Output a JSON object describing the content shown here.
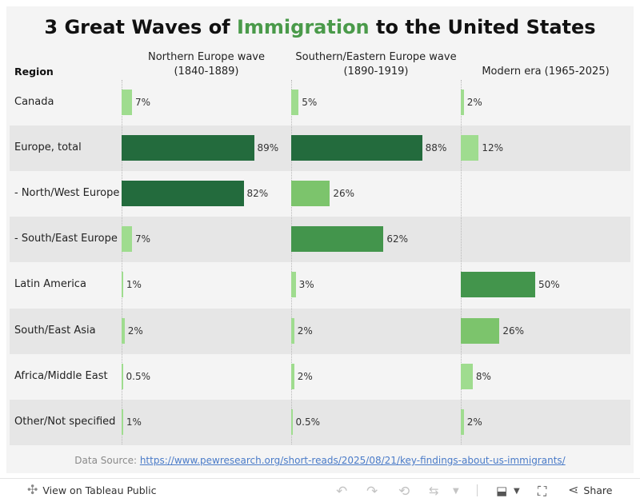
{
  "title": {
    "before": "3 Great Waves of ",
    "highlight": "Immigration",
    "after": " to the United States",
    "highlight_color": "#4a9a4a"
  },
  "region_header": "Region",
  "columns": [
    {
      "line1": "Northern Europe wave",
      "line2": "(1840-1889)"
    },
    {
      "line1": "Southern/Eastern Europe wave",
      "line2": "(1890-1919)"
    },
    {
      "line1": "Modern era (1965-2025)",
      "line2": ""
    }
  ],
  "chart_data": {
    "type": "bar",
    "orientation": "horizontal",
    "title": "3 Great Waves of Immigration to the United States",
    "categories": [
      "Canada",
      "Europe, total",
      "- North/West Europe",
      "- South/East Europe",
      "Latin America",
      "South/East Asia",
      "Africa/Middle East",
      "Other/Not specified"
    ],
    "series": [
      {
        "name": "Northern Europe wave (1840-1889)",
        "values": [
          7,
          89,
          82,
          7,
          1,
          2,
          0.5,
          1
        ],
        "labels": [
          "7%",
          "89%",
          "82%",
          "7%",
          "1%",
          "2%",
          "0.5%",
          "1%"
        ]
      },
      {
        "name": "Southern/Eastern Europe wave (1890-1919)",
        "values": [
          5,
          88,
          26,
          62,
          3,
          2,
          2,
          0.5
        ],
        "labels": [
          "5%",
          "88%",
          "26%",
          "62%",
          "3%",
          "2%",
          "2%",
          "0.5%"
        ]
      },
      {
        "name": "Modern era (1965-2025)",
        "values": [
          2,
          12,
          null,
          null,
          50,
          26,
          8,
          2
        ],
        "labels": [
          "2%",
          "12%",
          "",
          "",
          "50%",
          "26%",
          "8%",
          "2%"
        ]
      }
    ],
    "xlim": [
      0,
      100
    ],
    "color_scale": [
      "#9fdc8f",
      "#7cc46c",
      "#43954c",
      "#236b3d"
    ],
    "grid": false
  },
  "source": {
    "prefix": "Data Source: ",
    "link": "https://www.pewresearch.org/short-reads/2025/08/21/key-findings-about-us-immigrants/"
  },
  "toolbar": {
    "view_label": "View on Tableau Public",
    "share_label": "Share"
  }
}
